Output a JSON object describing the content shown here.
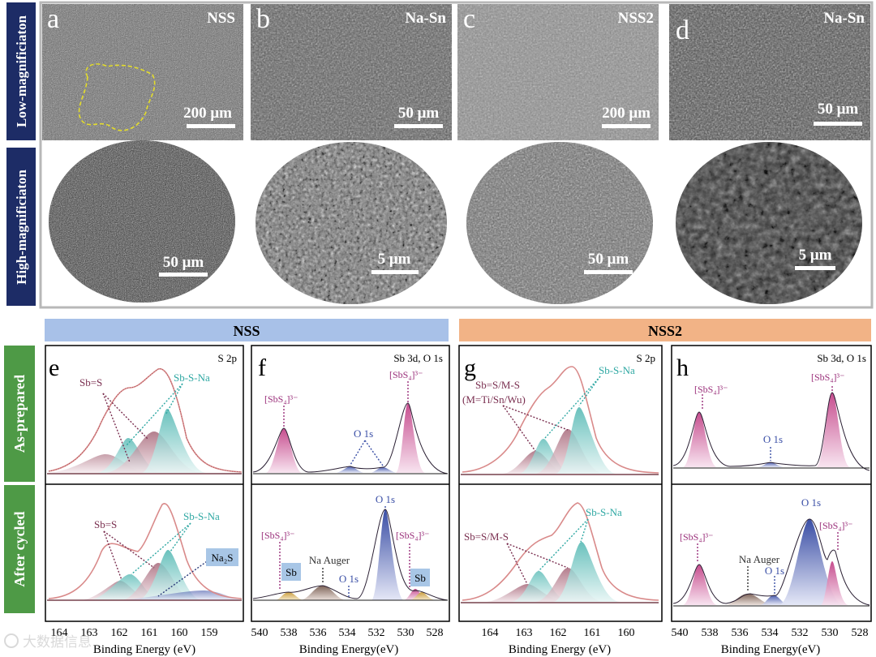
{
  "figure": {
    "row_labels": {
      "low": "Low-magnificiaton",
      "high": "High-magnificiaton"
    },
    "sem_panels": [
      {
        "letter": "a",
        "sample": "NSS",
        "low_scale": "200 μm",
        "high_scale": "50 μm"
      },
      {
        "letter": "b",
        "sample": "Na-Sn",
        "low_scale": "50 μm",
        "high_scale": "5 μm"
      },
      {
        "letter": "c",
        "sample": "NSS2",
        "low_scale": "200 μm",
        "high_scale": "50 μm"
      },
      {
        "letter": "d",
        "sample": "Na-Sn",
        "low_scale": "50 μm",
        "high_scale": "5 μm"
      }
    ],
    "group_headers": {
      "left": "NSS",
      "right": "NSS2"
    },
    "side_labels": {
      "top": "As-prepared",
      "bottom": "After cycled"
    },
    "xps_panels": [
      {
        "letter": "e",
        "region": "S 2p",
        "xlabel": "Binding Energy (eV)",
        "ticks": [
          "164",
          "163",
          "162",
          "161",
          "160",
          "159"
        ],
        "top_labels": [
          "Sb=S",
          "Sb-S-Na"
        ],
        "bottom_labels": [
          "Sb=S",
          "Sb-S-Na",
          "Na₂S"
        ]
      },
      {
        "letter": "f",
        "region": "Sb 3d, O 1s",
        "xlabel": "Binding Energy(eV)",
        "ticks": [
          "540",
          "538",
          "536",
          "534",
          "532",
          "530",
          "528"
        ],
        "top_labels": [
          "[SbS₄]³⁻",
          "O 1s",
          "[SbS₄]³⁻"
        ],
        "bottom_labels": [
          "[SbS₄]³⁻",
          "Sb",
          "Na Auger",
          "O 1s",
          "O 1s",
          "[SbS₄]³⁻",
          "Sb"
        ]
      },
      {
        "letter": "g",
        "region": "S 2p",
        "xlabel": "Binding Energy (eV)",
        "ticks": [
          "164",
          "163",
          "162",
          "161",
          "160"
        ],
        "top_labels": [
          "Sb=S/M-S",
          "(M=Ti/Sn/Wu)",
          "Sb-S-Na"
        ],
        "bottom_labels": [
          "Sb=S/M-S",
          "Sb-S-Na"
        ]
      },
      {
        "letter": "h",
        "region": "Sb 3d, O 1s",
        "xlabel": "Binding Energy(eV)",
        "ticks": [
          "540",
          "538",
          "536",
          "534",
          "532",
          "530",
          "528"
        ],
        "top_labels": [
          "[SbS₄]³⁻",
          "O 1s",
          "[SbS₄]³⁻"
        ],
        "bottom_labels": [
          "[SbS₄]³⁻",
          "Na Auger",
          "O 1s",
          "O 1s",
          "[SbS₄]³⁻"
        ]
      }
    ],
    "watermark": "大数据信息"
  },
  "colors": {
    "header_blue": "#a8c1e8",
    "header_orange": "#f2b386",
    "side_green": "#4e9a46",
    "row_navy": "#1d2c66",
    "teal": "#5bbcb8",
    "maroon": "#9e5a6e",
    "magenta": "#c44b88",
    "navy_peak": "#3a4fa6",
    "gold": "#c8a24a",
    "fit_red": "#d98a8a"
  }
}
